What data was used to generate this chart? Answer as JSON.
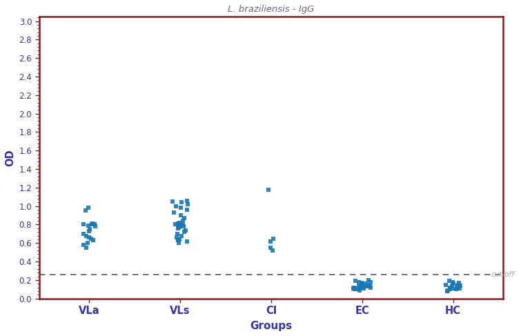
{
  "title": "L. braziliensis - IgG",
  "xlabel": "Groups",
  "ylabel": "OD",
  "ylim": [
    0.0,
    3.05
  ],
  "yticks": [
    0.0,
    0.2,
    0.4,
    0.6,
    0.8,
    1.0,
    1.2,
    1.4,
    1.6,
    1.8,
    2.0,
    2.2,
    2.4,
    2.6,
    2.8,
    3.0
  ],
  "groups": [
    "VLa",
    "VLs",
    "CI",
    "EC",
    "HC"
  ],
  "cutoff": 0.26,
  "dot_color": "#1878b4",
  "title_color": "#666680",
  "spine_color": "#8B1A1A",
  "tick_color": "#8B1A1A",
  "label_color": "#3333aa",
  "cutoff_line_color": "#555555",
  "cutoff_label": "cut-off",
  "cutoff_label_color": "#aaaaaa",
  "data": {
    "VLa": [
      0.8,
      0.81,
      0.79,
      0.8,
      0.78,
      0.75,
      0.73,
      0.7,
      0.68,
      0.66,
      0.65,
      0.63,
      0.6,
      0.58,
      0.55,
      0.8,
      0.95,
      0.98
    ],
    "VLs": [
      1.06,
      1.05,
      1.04,
      1.02,
      1.0,
      0.98,
      0.96,
      0.93,
      0.9,
      0.87,
      0.84,
      0.82,
      0.8,
      0.79,
      0.78,
      0.77,
      0.76,
      0.74,
      0.72,
      0.7,
      0.68,
      0.66,
      0.64,
      0.63,
      0.8,
      0.81,
      0.79,
      0.78,
      0.6,
      0.62
    ],
    "CI": [
      1.18,
      0.65,
      0.62,
      0.55,
      0.52
    ],
    "EC": [
      0.13,
      0.12,
      0.11,
      0.1,
      0.14,
      0.15,
      0.16,
      0.18,
      0.13,
      0.12,
      0.14,
      0.11,
      0.1,
      0.12,
      0.13,
      0.15,
      0.17,
      0.2,
      0.19,
      0.18,
      0.16,
      0.14,
      0.12,
      0.11,
      0.09
    ],
    "HC": [
      0.12,
      0.1,
      0.09,
      0.11,
      0.13,
      0.14,
      0.15,
      0.16,
      0.18,
      0.12,
      0.11,
      0.1,
      0.13,
      0.14,
      0.15,
      0.17,
      0.19,
      0.16,
      0.14,
      0.12,
      0.08
    ]
  }
}
